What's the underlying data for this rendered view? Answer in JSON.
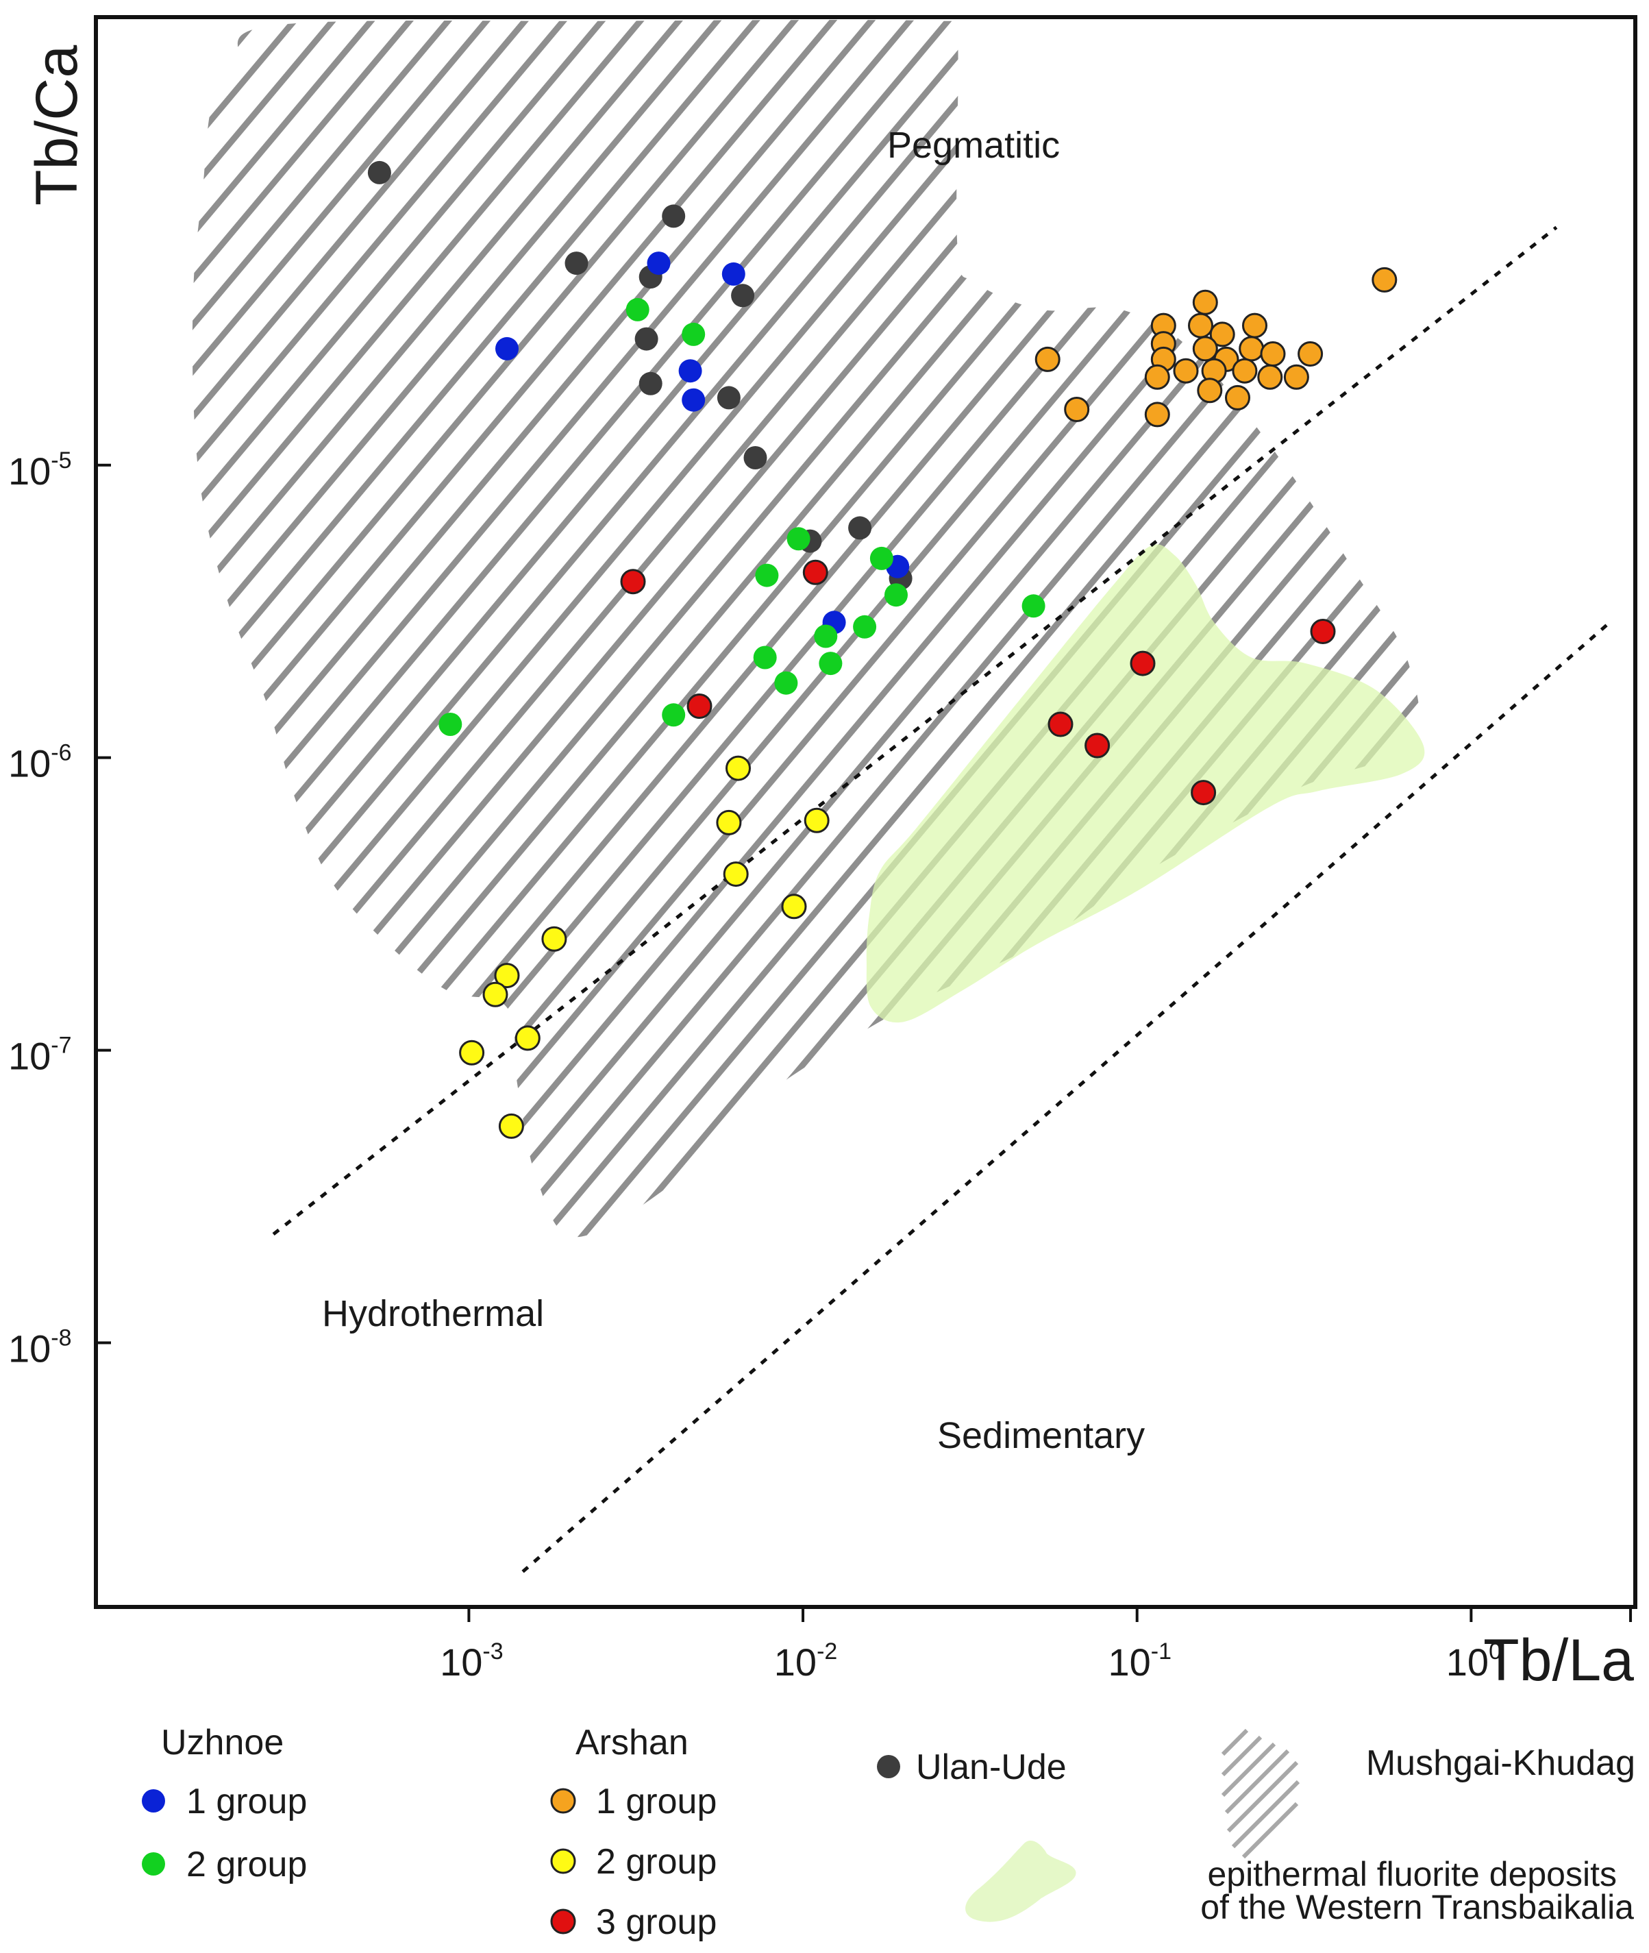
{
  "chart_data": {
    "type": "scatter",
    "title": "",
    "xlabel": "Tb/La",
    "ylabel": "Tb/Ca",
    "x_scale": "log",
    "y_scale": "log",
    "xlim": [
      7.65e-05,
      3.1
    ],
    "ylim": [
      1.25e-09,
      0.00034
    ],
    "grid": false,
    "x_ticks": [
      {
        "value": 0.001,
        "base": "10",
        "exp": "-3"
      },
      {
        "value": 0.01,
        "base": "10",
        "exp": "-2"
      },
      {
        "value": 0.1,
        "base": "10",
        "exp": "-1"
      },
      {
        "value": 1,
        "base": "10",
        "exp": "0"
      }
    ],
    "y_ticks": [
      {
        "value": 1e-05,
        "base": "10",
        "exp": "-5"
      },
      {
        "value": 1e-06,
        "base": "10",
        "exp": "-6"
      },
      {
        "value": 1e-07,
        "base": "10",
        "exp": "-7"
      },
      {
        "value": 1e-08,
        "base": "10",
        "exp": "-8"
      }
    ],
    "minor_x_ticks": [
      3.0
    ],
    "region_labels": [
      {
        "text": "Pegmatitic",
        "x": 0.075,
        "y": 9.8e-05
      },
      {
        "text": "Hydrothermal",
        "x": 0.0021,
        "y": 1e-08
      },
      {
        "text": "Sedimentary",
        "x": 0.13,
        "y": 3.8e-09
      }
    ],
    "boundary_lines": [
      {
        "name": "pegmatitic-hydrothermal",
        "points": [
          [
            0.00026,
            2.35e-08
          ],
          [
            1.8,
            6.5e-05
          ]
        ]
      },
      {
        "name": "hydrothermal-sedimentary",
        "points": [
          [
            0.00145,
            1.65e-09
          ],
          [
            2.6,
            2.9e-06
          ]
        ]
      }
    ],
    "fields": [
      {
        "name": "Mushgai-Khudag",
        "style": "hatched",
        "polygon": [
          [
            0.0002,
            0.00024
          ],
          [
            0.00027,
            0.00032
          ],
          [
            0.0026,
            0.00033
          ],
          [
            0.026,
            0.00033
          ],
          [
            0.029,
            0.0003
          ],
          [
            0.029,
            5.6e-05
          ],
          [
            0.033,
            4.2e-05
          ],
          [
            0.052,
            3.4e-05
          ],
          [
            0.09,
            3.4e-05
          ],
          [
            0.15,
            2.4e-05
          ],
          [
            0.28,
            9.8e-06
          ],
          [
            0.45,
            4.3e-06
          ],
          [
            0.65,
            2.1e-06
          ],
          [
            0.65,
            1.1e-06
          ],
          [
            0.3,
            7.8e-07
          ],
          [
            0.1,
            3.9e-07
          ],
          [
            0.05,
            2.3e-07
          ],
          [
            0.018,
            1.3e-07
          ],
          [
            0.007,
            6.5e-08
          ],
          [
            0.0042,
            3.6e-08
          ],
          [
            0.0021,
            2.3e-08
          ],
          [
            0.0016,
            3.6e-08
          ],
          [
            0.0014,
            7.5e-08
          ],
          [
            0.0013,
            1.4e-07
          ],
          [
            0.00086,
            1.6e-07
          ],
          [
            0.00055,
            2.4e-07
          ],
          [
            0.00038,
            3.9e-07
          ],
          [
            0.0003,
            7.4e-07
          ],
          [
            0.00025,
            1.5e-06
          ],
          [
            0.00019,
            3.4e-06
          ],
          [
            0.00016,
            7.4e-06
          ],
          [
            0.00015,
            1.6e-05
          ],
          [
            0.00015,
            4.2e-05
          ],
          [
            0.00016,
            9e-05
          ],
          [
            0.00017,
            0.00017
          ]
        ]
      },
      {
        "name": "epithermal fluorite deposits of the Western Transbaikalia",
        "style": "filled",
        "polygon": [
          [
            0.017,
            4.1e-07
          ],
          [
            0.022,
            5.8e-07
          ],
          [
            0.045,
            1.6e-06
          ],
          [
            0.085,
            3.9e-06
          ],
          [
            0.11,
            5.3e-06
          ],
          [
            0.13,
            4.9e-06
          ],
          [
            0.15,
            3.9e-06
          ],
          [
            0.17,
            2.9e-06
          ],
          [
            0.22,
            2.2e-06
          ],
          [
            0.32,
            2.1e-06
          ],
          [
            0.52,
            1.7e-06
          ],
          [
            0.72,
            1.1e-06
          ],
          [
            0.62,
            8.8e-07
          ],
          [
            0.35,
            7.7e-07
          ],
          [
            0.25,
            6.8e-07
          ],
          [
            0.1,
            3.5e-07
          ],
          [
            0.05,
            2.3e-07
          ],
          [
            0.03,
            1.6e-07
          ],
          [
            0.02,
            1.25e-07
          ],
          [
            0.016,
            1.4e-07
          ],
          [
            0.0155,
            2e-07
          ],
          [
            0.0158,
            2.9e-07
          ]
        ]
      }
    ],
    "series": [
      {
        "name": "Ulan-Ude",
        "color": "#3d3d3d",
        "points": [
          [
            0.00054,
            0.0001
          ],
          [
            0.0041,
            7.1e-05
          ],
          [
            0.0021,
            4.9e-05
          ],
          [
            0.0035,
            4.4e-05
          ],
          [
            0.0066,
            3.8e-05
          ],
          [
            0.0034,
            2.7e-05
          ],
          [
            0.0035,
            1.9e-05
          ],
          [
            0.006,
            1.7e-05
          ],
          [
            0.0072,
            1.06e-05
          ],
          [
            0.0148,
            6.1e-06
          ],
          [
            0.0105,
            5.5e-06
          ],
          [
            0.0196,
            4.1e-06
          ]
        ]
      },
      {
        "name": "Uzhnoe 1 group",
        "color": "#0a22d6",
        "points": [
          [
            0.0037,
            4.9e-05
          ],
          [
            0.0062,
            4.5e-05
          ],
          [
            0.0013,
            2.5e-05
          ],
          [
            0.0046,
            2.1e-05
          ],
          [
            0.0047,
            1.67e-05
          ],
          [
            0.0192,
            4.5e-06
          ],
          [
            0.0124,
            2.9e-06
          ]
        ]
      },
      {
        "name": "Uzhnoe 2 group",
        "color": "#12d020",
        "points": [
          [
            0.0032,
            3.4e-05
          ],
          [
            0.0047,
            2.8e-05
          ],
          [
            0.0097,
            5.6e-06
          ],
          [
            0.0172,
            4.8e-06
          ],
          [
            0.0078,
            4.2e-06
          ],
          [
            0.019,
            3.6e-06
          ],
          [
            0.049,
            3.3e-06
          ],
          [
            0.0153,
            2.8e-06
          ],
          [
            0.0117,
            2.6e-06
          ],
          [
            0.0077,
            2.2e-06
          ],
          [
            0.0121,
            2.1e-06
          ],
          [
            0.0089,
            1.8e-06
          ],
          [
            0.00088,
            1.3e-06
          ],
          [
            0.0041,
            1.4e-06
          ]
        ]
      },
      {
        "name": "Arshan 1 group",
        "color": "#f5a31f",
        "points": [
          [
            0.55,
            4.3e-05
          ],
          [
            0.16,
            3.6e-05
          ],
          [
            0.12,
            3e-05
          ],
          [
            0.155,
            3e-05
          ],
          [
            0.225,
            3e-05
          ],
          [
            0.12,
            2.6e-05
          ],
          [
            0.18,
            2.8e-05
          ],
          [
            0.16,
            2.5e-05
          ],
          [
            0.22,
            2.5e-05
          ],
          [
            0.255,
            2.4e-05
          ],
          [
            0.33,
            2.4e-05
          ],
          [
            0.054,
            2.3e-05
          ],
          [
            0.12,
            2.3e-05
          ],
          [
            0.185,
            2.3e-05
          ],
          [
            0.14,
            2.1e-05
          ],
          [
            0.17,
            2.1e-05
          ],
          [
            0.21,
            2.1e-05
          ],
          [
            0.115,
            2e-05
          ],
          [
            0.25,
            2e-05
          ],
          [
            0.3,
            2e-05
          ],
          [
            0.165,
            1.8e-05
          ],
          [
            0.2,
            1.7e-05
          ],
          [
            0.066,
            1.55e-05
          ],
          [
            0.115,
            1.49e-05
          ]
        ]
      },
      {
        "name": "Arshan 2 group",
        "color": "#fffa14",
        "points": [
          [
            0.0064,
            9.2e-07
          ],
          [
            0.011,
            6.1e-07
          ],
          [
            0.006,
            6e-07
          ],
          [
            0.0063,
            4e-07
          ],
          [
            0.0094,
            3.1e-07
          ],
          [
            0.0018,
            2.4e-07
          ],
          [
            0.0013,
            1.8e-07
          ],
          [
            0.0012,
            1.55e-07
          ],
          [
            0.0015,
            1.1e-07
          ],
          [
            0.00102,
            9.8e-08
          ],
          [
            0.00134,
            5.5e-08
          ]
        ]
      },
      {
        "name": "Arshan 3 group",
        "color": "#e01010",
        "points": [
          [
            0.0031,
            4e-06
          ],
          [
            0.0109,
            4.3e-06
          ],
          [
            0.36,
            2.7e-06
          ],
          [
            0.104,
            2.1e-06
          ],
          [
            0.0049,
            1.5e-06
          ],
          [
            0.059,
            1.3e-06
          ],
          [
            0.076,
            1.1e-06
          ],
          [
            0.158,
            7.6e-07
          ]
        ]
      }
    ],
    "legend": {
      "uzhnoe_title": "Uzhnoe",
      "arshan_title": "Arshan",
      "uzhnoe_1": "1 group",
      "uzhnoe_2": "2 group",
      "arshan_1": "1 group",
      "arshan_2": "2 group",
      "arshan_3": "3 group",
      "ulan_ude": "Ulan-Ude",
      "mushgai": "Mushgai-Khudag",
      "fluorite_line1": "epithermal fluorite deposits",
      "fluorite_line2": "of the Western Transbaikalia"
    }
  }
}
